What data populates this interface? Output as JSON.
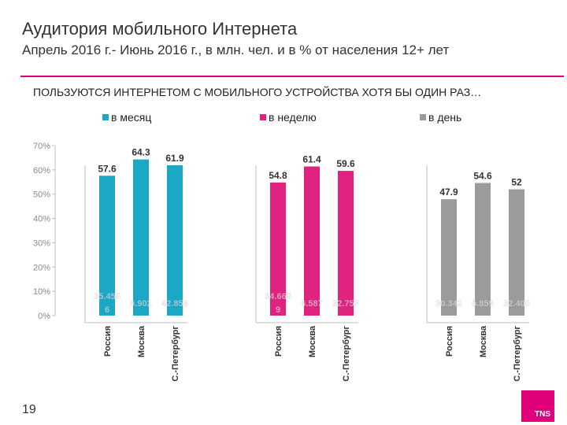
{
  "title": "Аудитория мобильного Интернета",
  "subtitle": "Апрель 2016 г.- Июнь 2016 г., в млн. чел. и в % от населения 12+ лет",
  "heading": "ПОЛЬЗУЮТСЯ ИНТЕРНЕТОМ С МОБИЛЬНОГО УСТРОЙСТВА ХОТЯ БЫ ОДИН РАЗ…",
  "page_number": "19",
  "logo": "TNS",
  "chart_data": {
    "type": "bar",
    "ylim": [
      0,
      70
    ],
    "yticks": [
      "0%",
      "10%",
      "20%",
      "30%",
      "40%",
      "50%",
      "60%",
      "70%"
    ],
    "categories": [
      "Россия",
      "Москва",
      "С.-Петербург"
    ],
    "series": [
      {
        "name": "в месяц",
        "color": "#1ba7c6",
        "values": [
          57.6,
          64.3,
          61.9
        ],
        "value_labels": [
          "57.6",
          "64.3",
          "61.9"
        ],
        "inner_labels": [
          "35.455 6",
          "6.902",
          "42.858"
        ]
      },
      {
        "name": "в неделю",
        "color": "#e0237e",
        "values": [
          54.8,
          61.4,
          59.6
        ],
        "value_labels": [
          "54.8",
          "61.4",
          "59.6"
        ],
        "inner_labels": [
          "34.665 9",
          "6.587",
          "32.753"
        ]
      },
      {
        "name": "в день",
        "color": "#9b9b9b",
        "values": [
          47.9,
          54.6,
          52
        ],
        "value_labels": [
          "47.9",
          "54.6",
          "52"
        ],
        "inner_labels": [
          "30.342",
          "5.859",
          "32.400"
        ]
      }
    ]
  }
}
